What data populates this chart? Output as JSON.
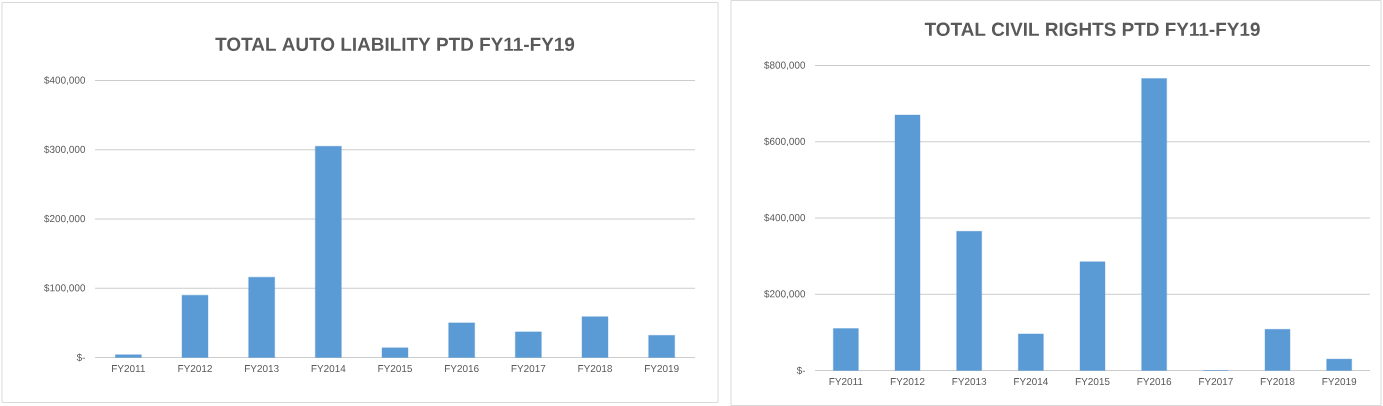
{
  "chart_data": [
    {
      "type": "bar",
      "title": "TOTAL AUTO LIABILITY PTD FY11-FY19",
      "categories": [
        "FY2011",
        "FY2012",
        "FY2013",
        "FY2014",
        "FY2015",
        "FY2016",
        "FY2017",
        "FY2018",
        "FY2019"
      ],
      "values": [
        4000,
        90000,
        116000,
        305000,
        14000,
        50000,
        37000,
        59000,
        32000
      ],
      "color": "#5b9bd5",
      "ylim": [
        0,
        400000
      ],
      "yticks": [
        {
          "value": 0,
          "label": "$-"
        },
        {
          "value": 100000,
          "label": "$100,000"
        },
        {
          "value": 200000,
          "label": "$200,000"
        },
        {
          "value": 300000,
          "label": "$300,000"
        },
        {
          "value": 400000,
          "label": "$400,000"
        }
      ],
      "grid": "y"
    },
    {
      "type": "bar",
      "title": "TOTAL CIVIL RIGHTS PTD FY11-FY19",
      "categories": [
        "FY2011",
        "FY2012",
        "FY2013",
        "FY2014",
        "FY2015",
        "FY2016",
        "FY2017",
        "FY2018",
        "FY2019"
      ],
      "values": [
        110000,
        670000,
        365000,
        96000,
        285000,
        766000,
        0,
        108000,
        30000
      ],
      "color": "#5b9bd5",
      "ylim": [
        0,
        800000
      ],
      "yticks": [
        {
          "value": 0,
          "label": "$-"
        },
        {
          "value": 200000,
          "label": "$200,000"
        },
        {
          "value": 400000,
          "label": "$400,000"
        },
        {
          "value": 600000,
          "label": "$600,000"
        },
        {
          "value": 800000,
          "label": "$800,000"
        }
      ],
      "grid": "y"
    }
  ]
}
